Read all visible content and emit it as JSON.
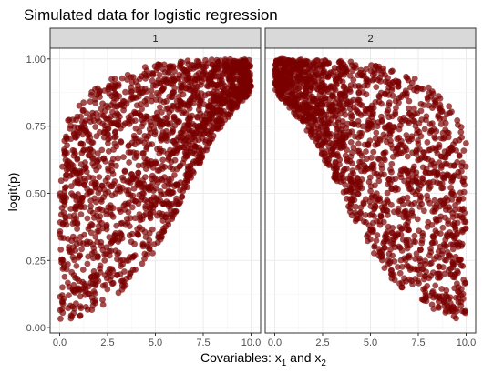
{
  "chart_data": {
    "type": "scatter",
    "title": "Simulated data for logistic regression",
    "xlabel": {
      "text": "Covariables: ",
      "var1": "x",
      "sub1": "1",
      "mid": " and ",
      "var2": "x",
      "sub2": "2"
    },
    "ylabel": "logit(p)",
    "xlim": [
      -0.5,
      10.5
    ],
    "ylim": [
      -0.02,
      1.04
    ],
    "x_ticks": [
      0,
      2.5,
      5,
      7.5,
      10
    ],
    "x_tick_labels": [
      "0.0",
      "2.5",
      "5.0",
      "7.5",
      "10.0"
    ],
    "y_ticks": [
      0,
      0.25,
      0.5,
      0.75,
      1
    ],
    "y_tick_labels": [
      "0.00",
      "0.25",
      "0.50",
      "0.75",
      "1.00"
    ],
    "point_color": "#7a0000",
    "point_alpha": 0.7,
    "panels": [
      {
        "strip": "1",
        "relationship": "increasing",
        "upper_boundary": [
          [
            0,
            0.73
          ],
          [
            1,
            0.84
          ],
          [
            2,
            0.9
          ],
          [
            3,
            0.94
          ],
          [
            4,
            0.965
          ],
          [
            5,
            0.98
          ],
          [
            6,
            0.99
          ],
          [
            7,
            0.995
          ],
          [
            8,
            0.998
          ],
          [
            10,
            1.0
          ]
        ],
        "lower_boundary": [
          [
            0,
            0.02
          ],
          [
            1,
            0.04
          ],
          [
            2,
            0.07
          ],
          [
            3,
            0.12
          ],
          [
            4,
            0.19
          ],
          [
            5,
            0.29
          ],
          [
            6,
            0.42
          ],
          [
            7,
            0.57
          ],
          [
            8,
            0.7
          ],
          [
            9,
            0.8
          ],
          [
            10,
            0.88
          ]
        ]
      },
      {
        "strip": "2",
        "relationship": "decreasing",
        "upper_boundary": [
          [
            0,
            1.0
          ],
          [
            2,
            0.998
          ],
          [
            3,
            0.995
          ],
          [
            4,
            0.99
          ],
          [
            5,
            0.98
          ],
          [
            6,
            0.965
          ],
          [
            7,
            0.94
          ],
          [
            8,
            0.9
          ],
          [
            9,
            0.84
          ],
          [
            10,
            0.73
          ]
        ],
        "lower_boundary": [
          [
            0,
            0.88
          ],
          [
            1,
            0.8
          ],
          [
            2,
            0.7
          ],
          [
            3,
            0.57
          ],
          [
            4,
            0.42
          ],
          [
            5,
            0.29
          ],
          [
            6,
            0.19
          ],
          [
            7,
            0.12
          ],
          [
            8,
            0.07
          ],
          [
            9,
            0.04
          ],
          [
            10,
            0.02
          ]
        ]
      }
    ]
  }
}
